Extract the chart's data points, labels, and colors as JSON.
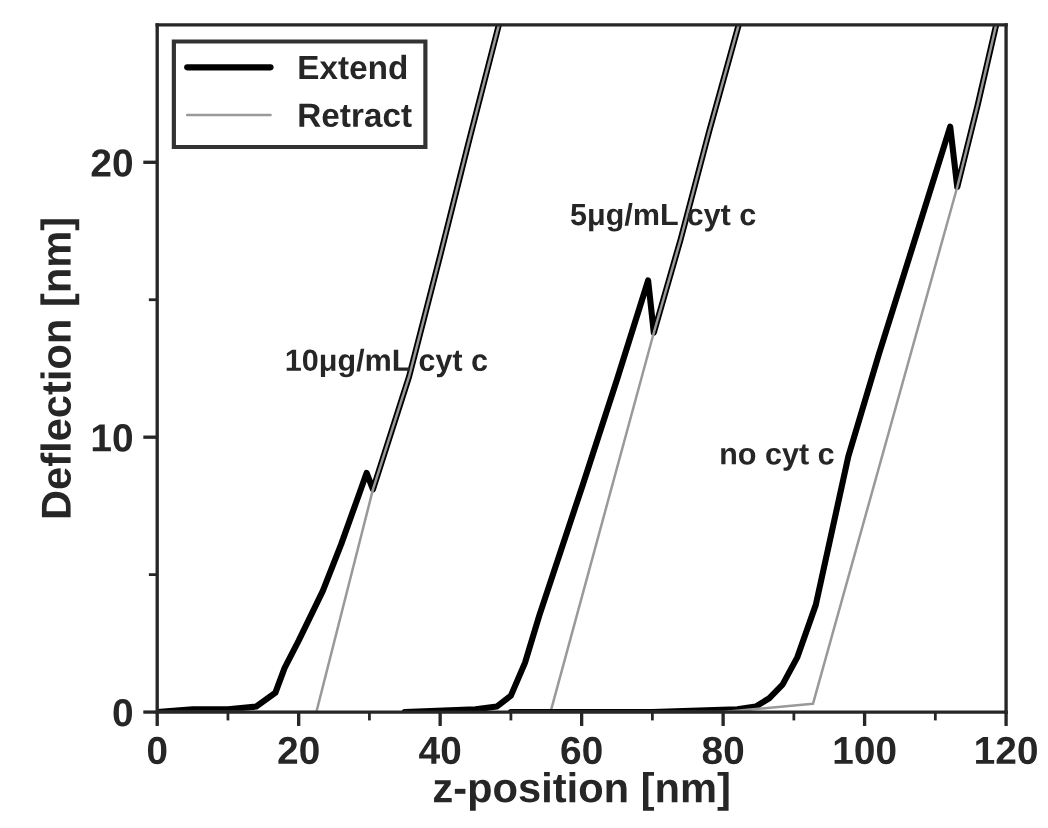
{
  "chart_data": {
    "type": "line",
    "xlabel": "z-position [nm]",
    "ylabel": "Deflection [nm]",
    "xlim": [
      0,
      120
    ],
    "ylim": [
      0,
      25
    ],
    "xticks": [
      0,
      {
        "value": 10,
        "label": null
      },
      20,
      {
        "value": 30,
        "label": null
      },
      40,
      {
        "value": 50,
        "label": null
      },
      60,
      {
        "value": 70,
        "label": null
      },
      80,
      {
        "value": 90,
        "label": null
      },
      100,
      {
        "value": 110,
        "label": null
      },
      120
    ],
    "yticks": [
      0,
      {
        "value": 5,
        "label": null
      },
      10,
      {
        "value": 15,
        "label": null
      },
      20
    ],
    "legend": "top left",
    "grid": false,
    "marker": "none",
    "line_style": "solid",
    "series": [
      {
        "name": "Extend",
        "color": "#000000",
        "x": [
          0,
          5,
          10,
          14,
          16.7,
          18,
          20,
          23.4,
          26,
          28.5,
          29.6,
          30.5,
          35.6,
          40,
          44,
          48.3
        ],
        "values": [
          0,
          0.1,
          0.1,
          0.2,
          0.7,
          1.6,
          2.6,
          4.4,
          6.1,
          7.9,
          8.7,
          8.1,
          12.2,
          16.6,
          20.7,
          25
        ]
      },
      {
        "name": "Retract",
        "color": "#999999",
        "x": [
          0,
          10,
          22.5,
          30.5,
          35.6,
          40,
          44,
          48.3
        ],
        "values": [
          0,
          0,
          0,
          8.1,
          12.2,
          16.6,
          20.7,
          25
        ]
      },
      {
        "color": "#000000",
        "x": [
          35,
          45,
          48,
          50,
          52,
          54,
          60.2,
          65,
          69.4,
          70.2,
          74,
          78,
          82.2
        ],
        "values": [
          0,
          0.1,
          0.2,
          0.6,
          1.8,
          3.5,
          8.3,
          12.1,
          15.7,
          13.8,
          17.2,
          21.1,
          25
        ]
      },
      {
        "color": "#999999",
        "x": [
          50,
          55.6,
          70.2,
          74,
          78,
          82.2
        ],
        "values": [
          0,
          0,
          13.8,
          17.2,
          21.1,
          25
        ]
      },
      {
        "color": "#000000",
        "x": [
          50,
          70,
          82,
          84.6,
          86.5,
          88.4,
          90.5,
          93.1,
          97.7,
          102,
          107,
          112.1,
          113.1,
          116,
          118.6
        ],
        "values": [
          0,
          0,
          0.1,
          0.2,
          0.5,
          1,
          2,
          3.9,
          9.3,
          13,
          17.1,
          21.3,
          19.1,
          22.1,
          25
        ]
      },
      {
        "color": "#999999",
        "x": [
          50,
          80,
          92.7,
          113.1,
          116,
          118.6
        ],
        "values": [
          0,
          0,
          0.3,
          19.1,
          22.1,
          25
        ]
      }
    ],
    "annotations": [
      "10μg/mL cyt c",
      "5μg/mL cyt c",
      "no cyt c"
    ]
  }
}
